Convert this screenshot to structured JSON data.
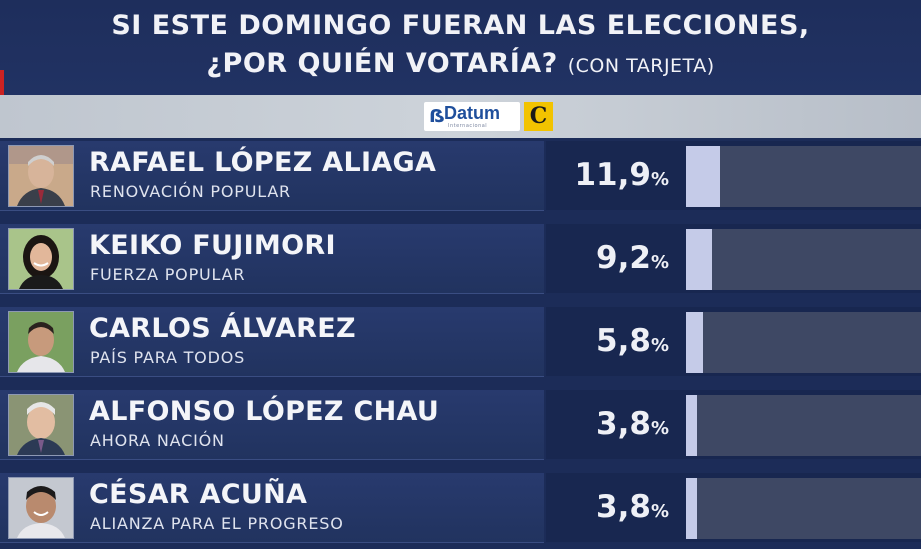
{
  "header": {
    "title_line1": "SI ESTE DOMINGO FUERAN LAS ELECCIONES,",
    "title_line2": "¿POR QUIÉN VOTARÍA?",
    "note": "(CON TARJETA)"
  },
  "logos": {
    "pollster": "Datum",
    "pollster_sub": "Internacional",
    "media": "C"
  },
  "colors": {
    "background": "#1c2c58",
    "bar": "#c5cbe8",
    "track": "#3e4864",
    "media_logo": "#f2c300"
  },
  "chart_data": {
    "type": "bar",
    "orientation": "horizontal",
    "unit": "%",
    "xlim": [
      0,
      100
    ],
    "categories": [
      "RAFAEL LÓPEZ ALIAGA",
      "KEIKO FUJIMORI",
      "CARLOS ÁLVAREZ",
      "ALFONSO LÓPEZ CHAU",
      "CÉSAR ACUÑA"
    ],
    "values": [
      11.9,
      9.2,
      5.8,
      3.8,
      3.8
    ],
    "items": [
      {
        "name": "RAFAEL LÓPEZ ALIAGA",
        "party": "RENOVACIÓN POPULAR",
        "value": 11.9,
        "label": "11,9"
      },
      {
        "name": "KEIKO FUJIMORI",
        "party": "FUERZA POPULAR",
        "value": 9.2,
        "label": "9,2"
      },
      {
        "name": "CARLOS ÁLVAREZ",
        "party": "PAÍS PARA TODOS",
        "value": 5.8,
        "label": "5,8"
      },
      {
        "name": "ALFONSO LÓPEZ CHAU",
        "party": "AHORA NACIÓN",
        "value": 3.8,
        "label": "3,8"
      },
      {
        "name": "CÉSAR ACUÑA",
        "party": "ALIANZA PARA EL PROGRESO",
        "value": 3.8,
        "label": "3,8"
      }
    ]
  }
}
